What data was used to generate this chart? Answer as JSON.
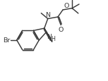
{
  "bg_color": "#ffffff",
  "line_color": "#3a3a3a",
  "lw": 1.05,
  "fs": 6.8,
  "fs_sub": 5.8,
  "figsize": [
    1.53,
    1.16
  ],
  "dpi": 100,
  "xlim": [
    0,
    9.5
  ],
  "ylim": [
    0,
    7.2
  ]
}
